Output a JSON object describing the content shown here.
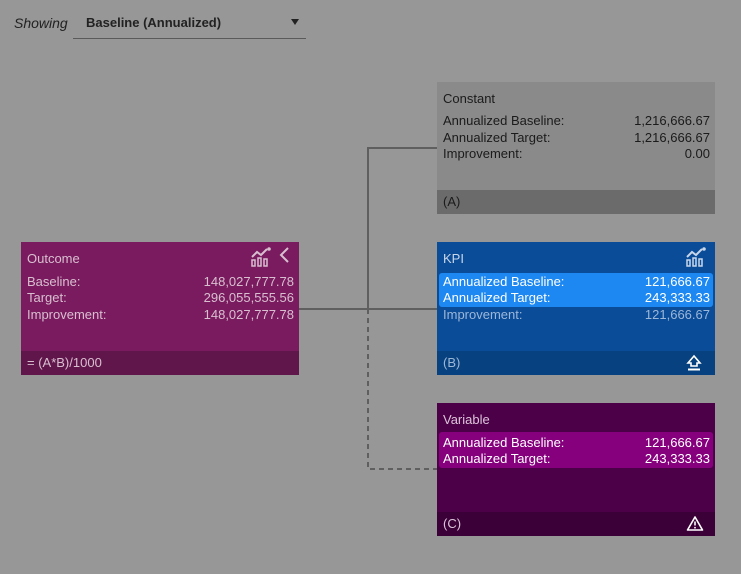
{
  "header": {
    "showing_label": "Showing",
    "selected_view": "Baseline (Annualized)"
  },
  "nodes": {
    "outcome": {
      "title": "Outcome",
      "rows": [
        {
          "label": "Baseline:",
          "value": "148,027,777.78"
        },
        {
          "label": "Target:",
          "value": "296,055,555.56"
        },
        {
          "label": "Improvement:",
          "value": "148,027,777.78"
        }
      ],
      "footer": "= (A*B)/1000"
    },
    "constant": {
      "title": "Constant",
      "rows": [
        {
          "label": "Annualized Baseline:",
          "value": "1,216,666.67"
        },
        {
          "label": "Annualized Target:",
          "value": "1,216,666.67"
        },
        {
          "label": "Improvement:",
          "value": "0.00"
        }
      ],
      "footer": "(A)"
    },
    "kpi": {
      "title": "KPI",
      "rows": [
        {
          "label": "Annualized Baseline:",
          "value": "121,666.67"
        },
        {
          "label": "Annualized Target:",
          "value": "243,333.33"
        },
        {
          "label": "Improvement:",
          "value": "121,666.67"
        }
      ],
      "footer": "(B)"
    },
    "variable": {
      "title": "Variable",
      "rows": [
        {
          "label": "Annualized Baseline:",
          "value": "121,666.67"
        },
        {
          "label": "Annualized Target:",
          "value": "243,333.33"
        }
      ],
      "footer": "(C)"
    }
  },
  "colors": {
    "background": "#979797",
    "outcome": "#7a1b5f",
    "constant": "#8a8a8a",
    "kpi": "#0a4c98",
    "kpi_highlight": "#1e88f2",
    "variable": "#4c0048",
    "variable_highlight": "#86007e",
    "connector": "#5f5f5f"
  },
  "icons": {
    "chart": "chart-icon",
    "collapse": "chevron-left-icon",
    "upload": "upload-icon",
    "warning": "warning-icon",
    "dropdown": "caret-down-icon"
  }
}
